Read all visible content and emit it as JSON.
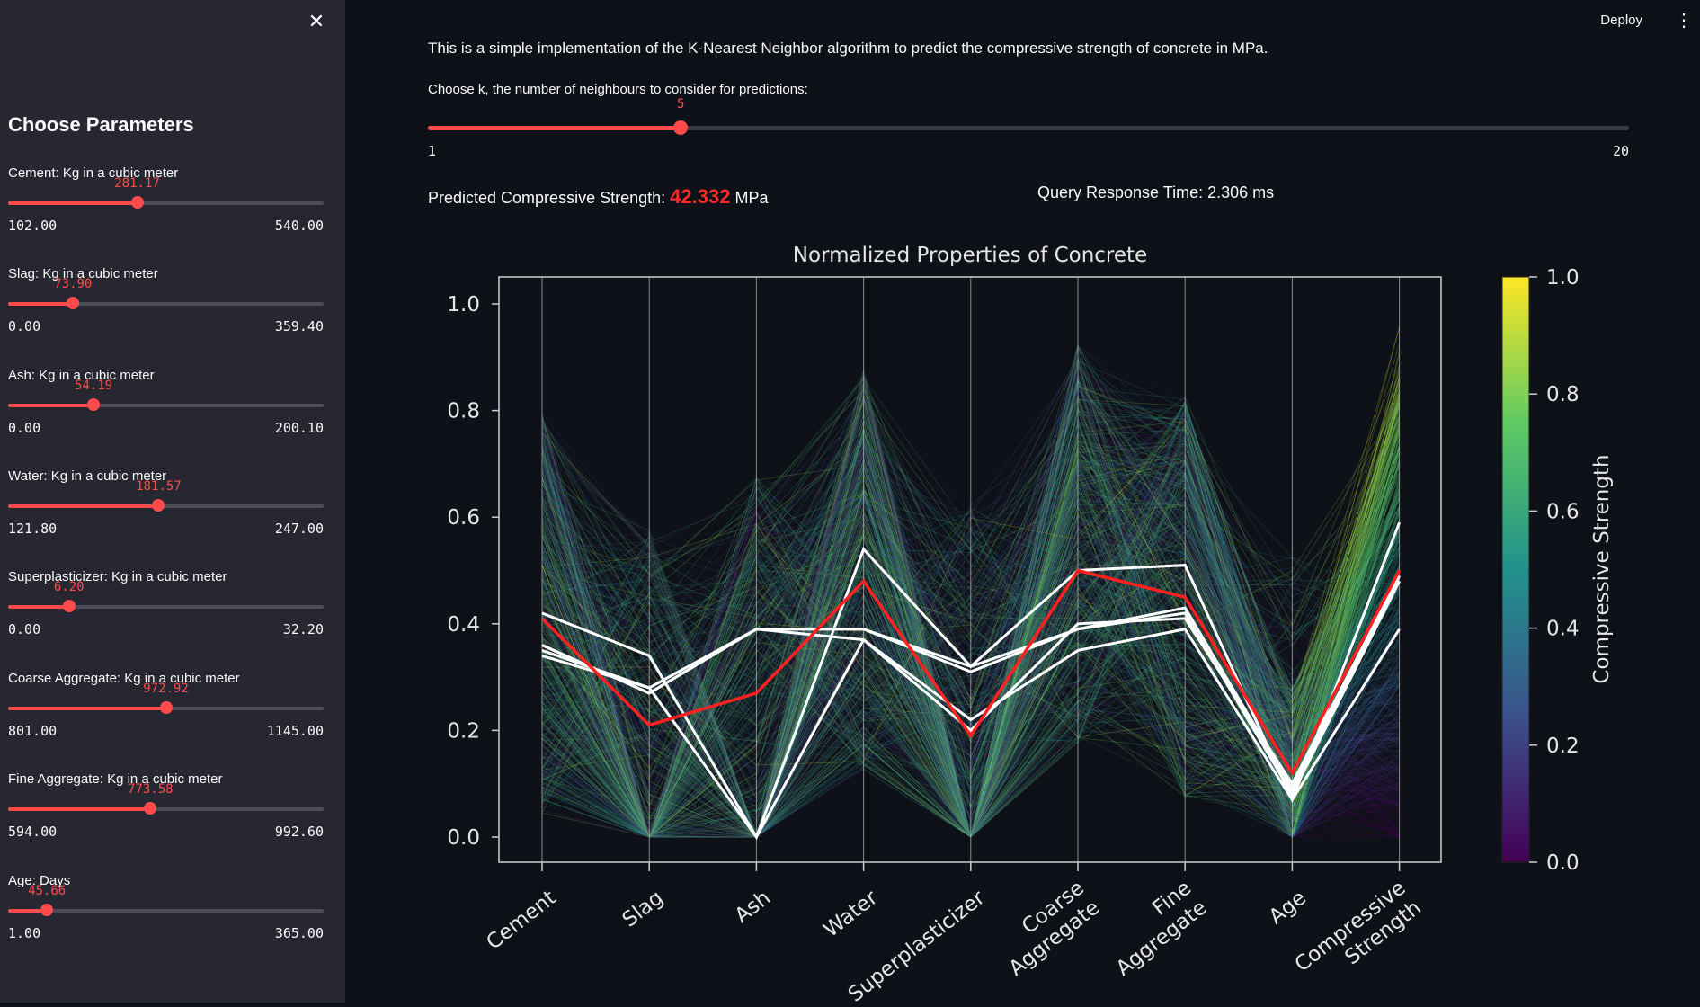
{
  "sidebar": {
    "title": "Choose Parameters",
    "sliders": [
      {
        "label": "Cement: Kg in a cubic meter",
        "value": "281.17",
        "min": "102.00",
        "max": "540.00",
        "fraction": 0.409
      },
      {
        "label": "Slag: Kg in a cubic meter",
        "value": "73.90",
        "min": "0.00",
        "max": "359.40",
        "fraction": 0.206
      },
      {
        "label": "Ash: Kg in a cubic meter",
        "value": "54.19",
        "min": "0.00",
        "max": "200.10",
        "fraction": 0.271
      },
      {
        "label": "Water: Kg in a cubic meter",
        "value": "181.57",
        "min": "121.80",
        "max": "247.00",
        "fraction": 0.477
      },
      {
        "label": "Superplasticizer: Kg in a cubic meter",
        "value": "6.20",
        "min": "0.00",
        "max": "32.20",
        "fraction": 0.193
      },
      {
        "label": "Coarse Aggregate: Kg in a cubic meter",
        "value": "972.92",
        "min": "801.00",
        "max": "1145.00",
        "fraction": 0.5
      },
      {
        "label": "Fine Aggregate: Kg in a cubic meter",
        "value": "773.58",
        "min": "594.00",
        "max": "992.60",
        "fraction": 0.451
      },
      {
        "label": "Age: Days",
        "value": "45.66",
        "min": "1.00",
        "max": "365.00",
        "fraction": 0.123
      }
    ]
  },
  "header": {
    "deploy_label": "Deploy",
    "menu_icon": "vertical-dots-icon",
    "close_icon": "close-icon"
  },
  "main": {
    "intro": "This is a simple implementation of the K-Nearest Neighbor algorithm to predict the compressive strength of concrete in MPa.",
    "k_label": "Choose k, the number of neighbours to consider for predictions:",
    "k_value": "5",
    "k_min": "1",
    "k_max": "20",
    "k_fraction": 0.2105,
    "prediction_label": "Predicted Compressive Strength:",
    "prediction_value": "42.332",
    "prediction_unit": "MPa",
    "query_time": "Query Response Time: 2.306 ms"
  },
  "colors": {
    "accent": "#ff4b4b",
    "prediction": "#ff2b2b",
    "query_line": "#ff2020",
    "neighbor_line": "#ffffff"
  },
  "chart_data": {
    "type": "parallel-coordinates",
    "title": "Normalized Properties of Concrete",
    "axes": [
      "Cement",
      "Slag",
      "Ash",
      "Water",
      "Superplasticizer",
      "Coarse Aggregate",
      "Fine Aggregate",
      "Age",
      "Compressive Strength"
    ],
    "yticks": [
      "0.0",
      "0.2",
      "0.4",
      "0.6",
      "0.8",
      "1.0"
    ],
    "ylim": [
      0,
      1
    ],
    "colorbar": {
      "label": "Compressive Strength",
      "ticks": [
        "0.0",
        "0.2",
        "0.4",
        "0.6",
        "0.8",
        "1.0"
      ],
      "colormap": "viridis"
    },
    "query": [
      0.41,
      0.21,
      0.27,
      0.48,
      0.19,
      0.5,
      0.45,
      0.12,
      0.5
    ],
    "neighbors": [
      [
        0.42,
        0.34,
        0.0,
        0.54,
        0.32,
        0.5,
        0.51,
        0.07,
        0.59
      ],
      [
        0.36,
        0.27,
        0.39,
        0.39,
        0.31,
        0.39,
        0.43,
        0.09,
        0.48
      ],
      [
        0.35,
        0.28,
        0.39,
        0.39,
        0.32,
        0.39,
        0.42,
        0.08,
        0.48
      ],
      [
        0.34,
        0.28,
        0.0,
        0.37,
        0.22,
        0.35,
        0.39,
        0.07,
        0.39
      ],
      [
        0.36,
        0.27,
        0.39,
        0.37,
        0.2,
        0.4,
        0.41,
        0.1,
        0.49
      ]
    ],
    "grid": false
  }
}
